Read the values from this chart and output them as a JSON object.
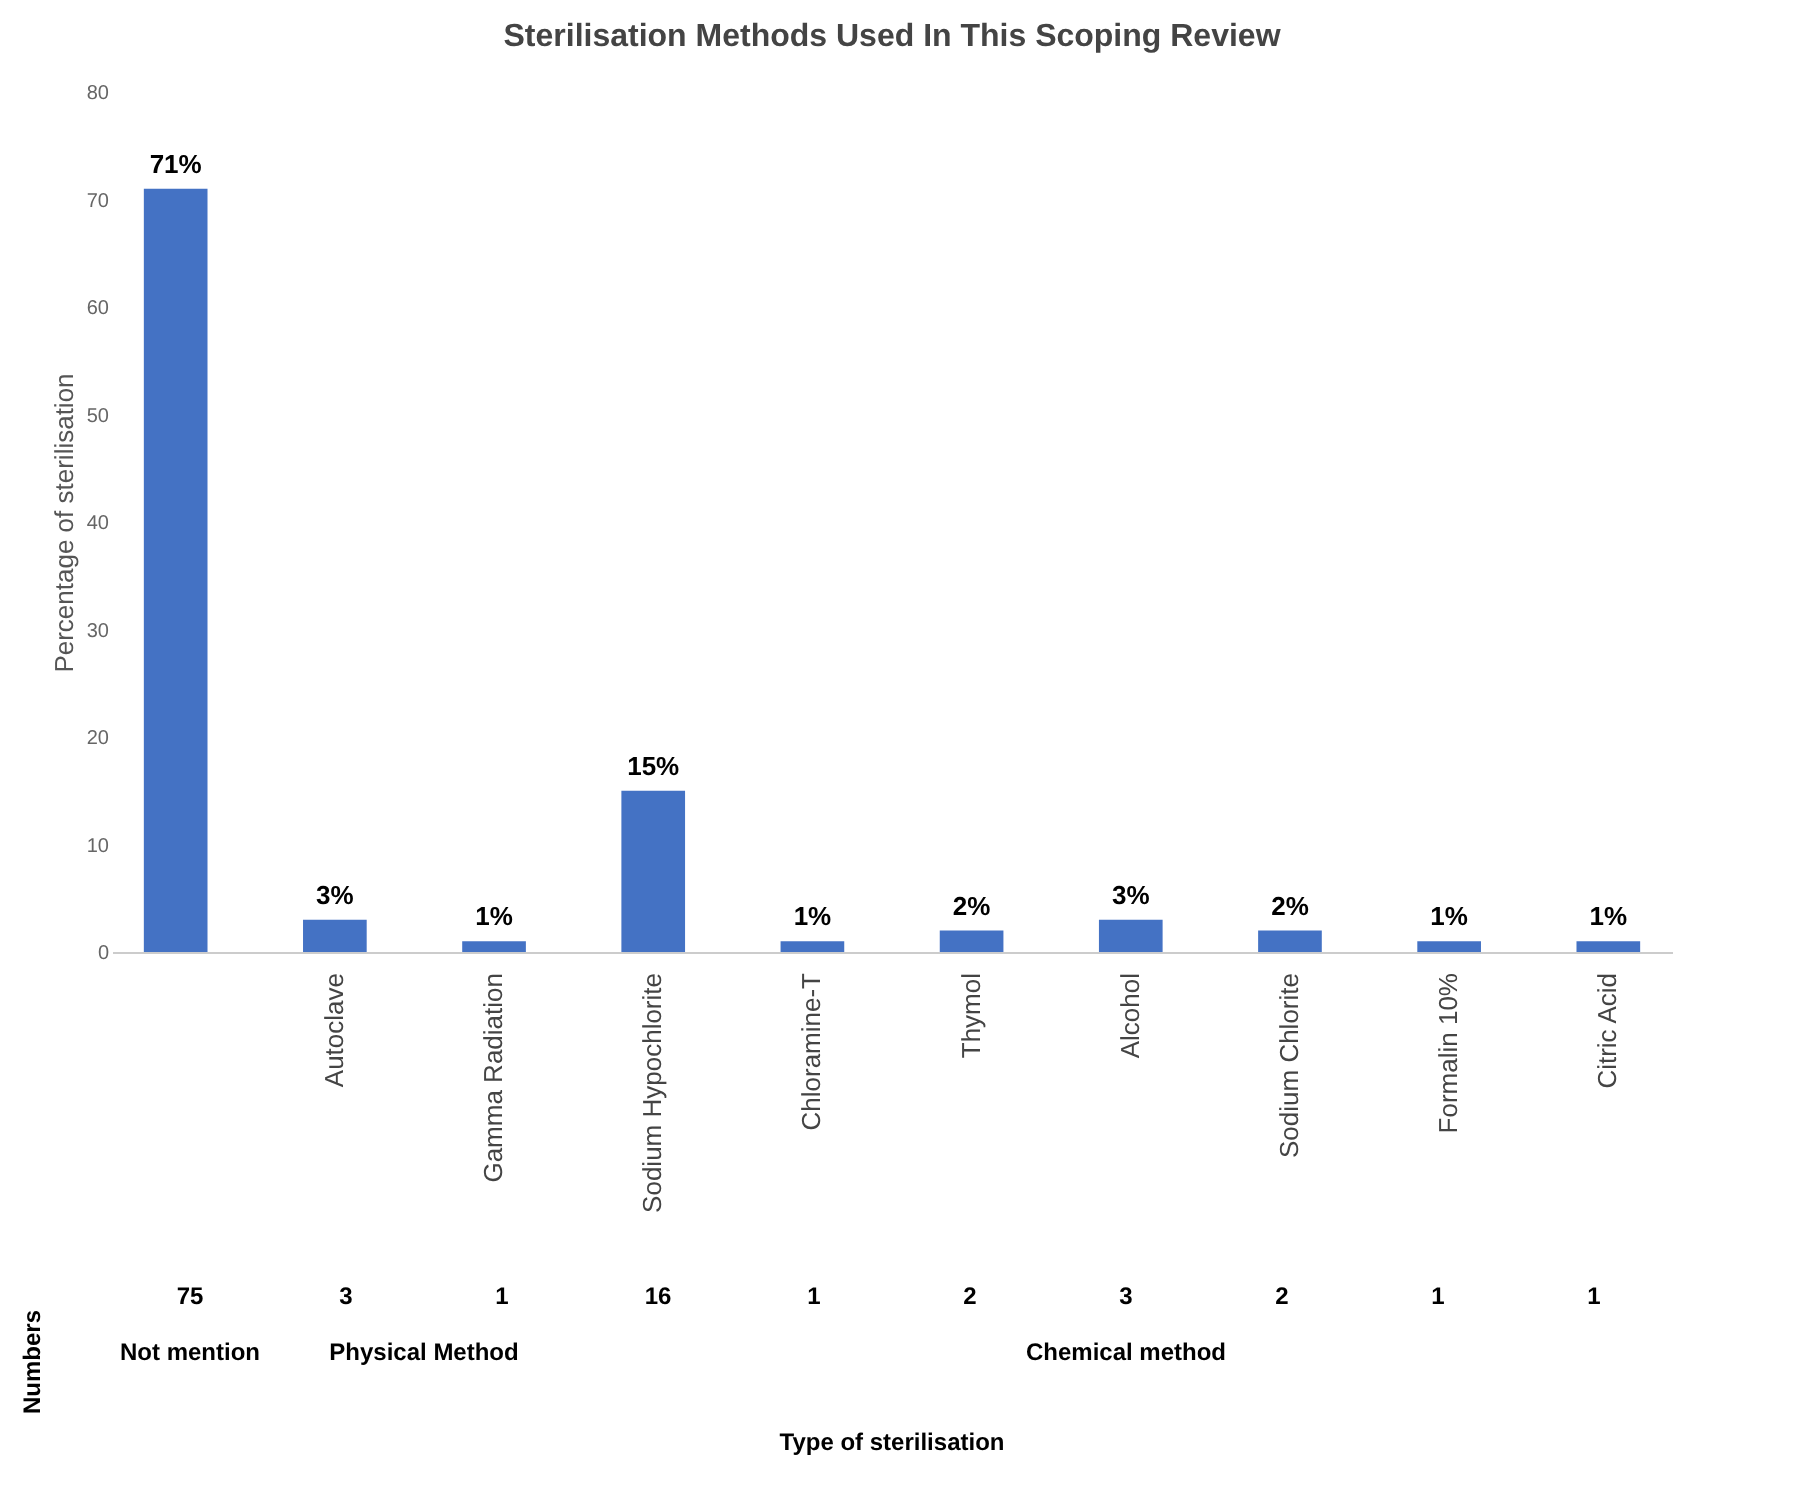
{
  "chart_data": {
    "type": "bar",
    "title": "Sterilisation Methods Used In This Scoping Review",
    "ylabel": "Percentage of sterilisation",
    "categories": [
      null,
      "Autoclave",
      "Gamma Radiation",
      "Sodium Hypochlorite",
      "Chloramine-T",
      "Thymol",
      "Alcohol",
      "Sodium Chlorite",
      "Formalin 10%",
      "Citric Acid"
    ],
    "values": [
      71,
      3,
      1,
      15,
      1,
      2,
      3,
      2,
      1,
      1
    ],
    "value_labels": [
      "71%",
      "3%",
      "1%",
      "15%",
      "1%",
      "2%",
      "3%",
      "2%",
      "1%",
      "1%"
    ],
    "color": "#4472c4",
    "ylim": [
      0,
      80
    ],
    "yticks": [
      0,
      10,
      20,
      30,
      40,
      50,
      60,
      70,
      80
    ],
    "grid": false,
    "annotations": [
      "Numbers",
      "75",
      "3",
      "1",
      "16",
      "1",
      "2",
      "3",
      "2",
      "1",
      "1",
      "Not mention",
      "Physical Method",
      "Chemical method",
      "Type of sterilisation"
    ]
  }
}
